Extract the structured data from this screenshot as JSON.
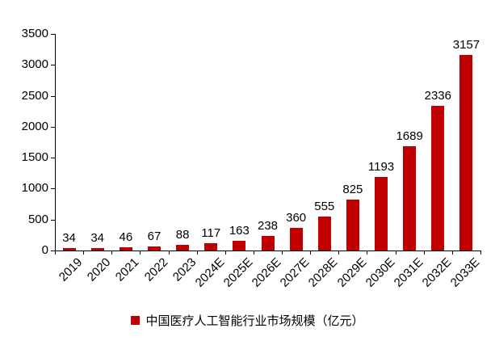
{
  "chart_data": {
    "type": "bar",
    "title": "",
    "xlabel": "",
    "ylabel": "",
    "categories": [
      "2019",
      "2020",
      "2021",
      "2022",
      "2023",
      "2024E",
      "2025E",
      "2026E",
      "2027E",
      "2028E",
      "2029E",
      "2030E",
      "2031E",
      "2032E",
      "2033E"
    ],
    "values": [
      34,
      34,
      46,
      67,
      88,
      117,
      163,
      238,
      360,
      555,
      825,
      1193,
      1689,
      2336,
      3157
    ],
    "ylim": [
      0,
      3500
    ],
    "ytick_step": 500,
    "ytick_labels": [
      "0",
      "500",
      "1000",
      "1500",
      "2000",
      "2500",
      "3000",
      "3500"
    ],
    "bar_color": "#C00000",
    "grid": false,
    "data_labels": true,
    "legend_position": "bottom",
    "legend": [
      "中国医疗人工智能行业市场规模（亿元）"
    ]
  }
}
